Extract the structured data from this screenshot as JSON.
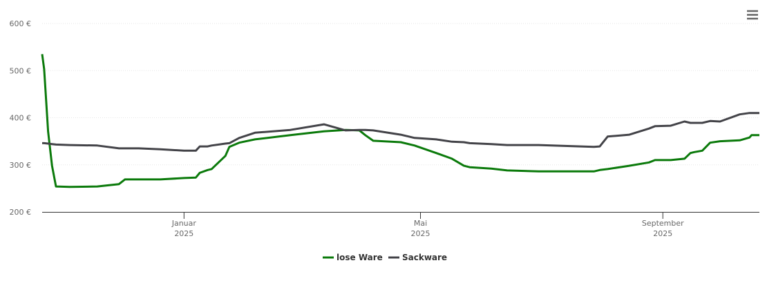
{
  "chart_data": {
    "type": "line",
    "x": [
      "2024-10-21",
      "2024-10-22",
      "2024-10-24",
      "2024-10-26",
      "2024-10-28",
      "2024-11-04",
      "2024-11-18",
      "2024-11-29",
      "2024-12-02",
      "2024-12-09",
      "2024-12-20",
      "2025-01-01",
      "2025-01-07",
      "2025-01-09",
      "2025-01-13",
      "2025-01-15",
      "2025-01-22",
      "2025-01-24",
      "2025-01-29",
      "2025-02-06",
      "2025-02-24",
      "2025-03-13",
      "2025-03-24",
      "2025-03-31",
      "2025-04-03",
      "2025-04-07",
      "2025-04-21",
      "2025-04-28",
      "2025-05-09",
      "2025-05-17",
      "2025-05-23",
      "2025-05-26",
      "2025-06-06",
      "2025-06-14",
      "2025-06-30",
      "2025-07-28",
      "2025-07-31",
      "2025-08-04",
      "2025-08-15",
      "2025-08-25",
      "2025-08-28",
      "2025-09-05",
      "2025-09-12",
      "2025-09-15",
      "2025-09-17",
      "2025-09-21",
      "2025-09-25",
      "2025-09-30",
      "2025-10-10",
      "2025-10-15",
      "2025-10-16",
      "2025-10-20"
    ],
    "series": [
      {
        "name": "lose Ware",
        "color": "#0b7a0b",
        "values": [
          535,
          503,
          371,
          298,
          254,
          253,
          254,
          259,
          269,
          269,
          269,
          272,
          273,
          283,
          289,
          291,
          319,
          338,
          347,
          354,
          363,
          371,
          374,
          373,
          363,
          351,
          348,
          341,
          325,
          313,
          298,
          295,
          292,
          288,
          286,
          286,
          289,
          291,
          298,
          305,
          310,
          310,
          313,
          325,
          327,
          330,
          347,
          350,
          352,
          358,
          363,
          363
        ]
      },
      {
        "name": "Sackware",
        "color": "#434348",
        "values": [
          346,
          346,
          345,
          344,
          343,
          342,
          341,
          335,
          335,
          335,
          333,
          330,
          330,
          339,
          339,
          341,
          345,
          346,
          357,
          368,
          374,
          386,
          373,
          374,
          374,
          373,
          364,
          357,
          354,
          349,
          348,
          346,
          344,
          342,
          342,
          338,
          339,
          360,
          364,
          377,
          382,
          383,
          392,
          389,
          389,
          389,
          393,
          392,
          407,
          410,
          410,
          410
        ]
      }
    ],
    "xlim": [
      "2024-10-21",
      "2025-10-20"
    ],
    "xticks": [
      {
        "value": "2025-01-01",
        "label": "Januar",
        "sublabel": "2025"
      },
      {
        "value": "2025-05-01",
        "label": "Mai",
        "sublabel": "2025"
      },
      {
        "value": "2025-09-01",
        "label": "September",
        "sublabel": "2025"
      }
    ],
    "ylim": [
      200,
      600
    ],
    "yticks": [
      {
        "value": 200,
        "label": "200 €"
      },
      {
        "value": 300,
        "label": "300 €"
      },
      {
        "value": 400,
        "label": "400 €"
      },
      {
        "value": 500,
        "label": "500 €"
      },
      {
        "value": 600,
        "label": "600 €"
      }
    ],
    "grid": true,
    "legend": "bottom"
  }
}
